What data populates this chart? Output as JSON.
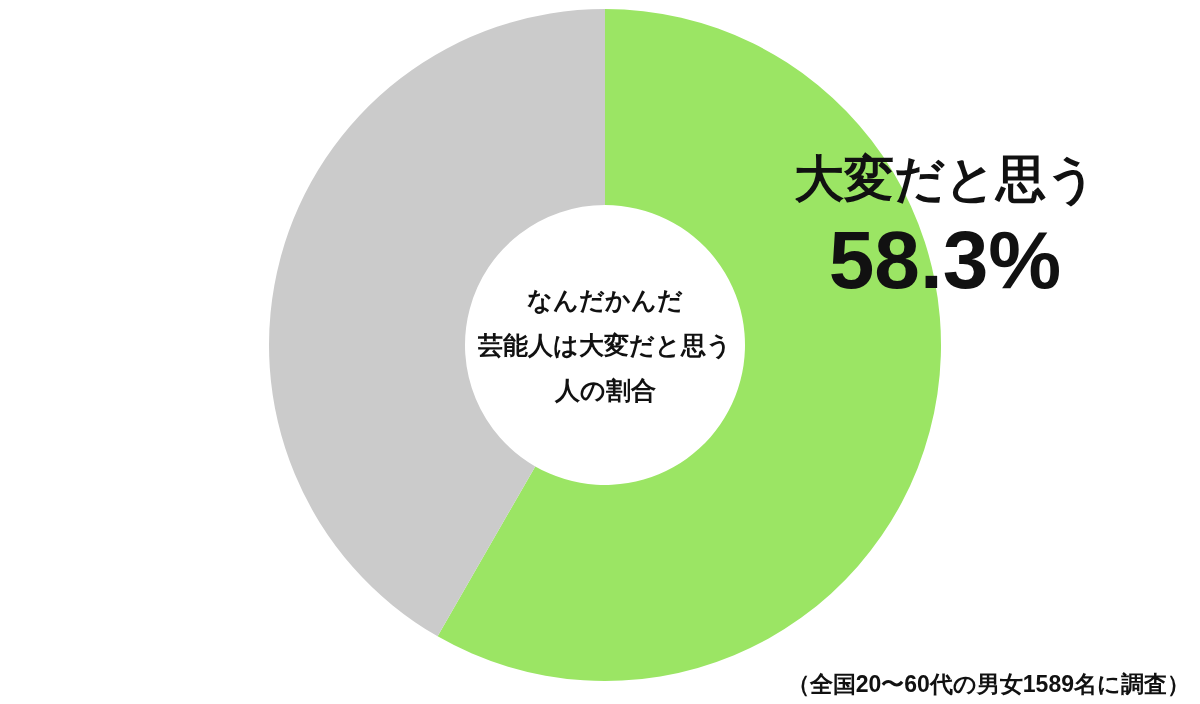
{
  "chart_data": {
    "type": "donut",
    "title": "なんだかんだ芸能人は大変だと思う人の割合",
    "categories": [
      "大変だと思う",
      null
    ],
    "values": [
      58.3,
      41.7
    ],
    "colors": [
      "#9be564",
      "#cbcbcb"
    ],
    "value_labels": [
      "58.3%",
      null
    ],
    "annotations": [
      "（全国20〜60代の男女1589名に調査）"
    ]
  }
}
